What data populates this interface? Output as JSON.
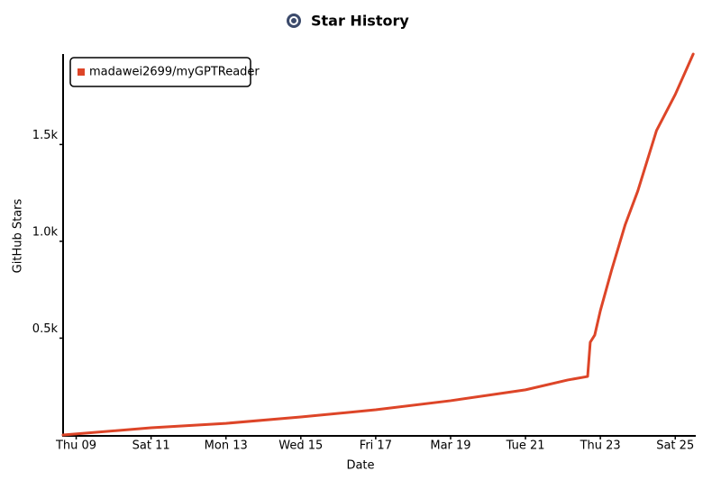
{
  "chart_data": {
    "type": "line",
    "title": "Star History",
    "xlabel": "Date",
    "ylabel": "GitHub Stars",
    "x": [
      8.65,
      11,
      13,
      15,
      17,
      19,
      21,
      22.13,
      22.66,
      22.73,
      22.85,
      23.0,
      23.3,
      23.66,
      24.0,
      24.5,
      25.0,
      25.48
    ],
    "series": [
      {
        "name": "madawei2699/myGPTReader",
        "color": "#dd4528",
        "values": [
          0,
          37,
          60,
          93,
          130,
          177,
          233,
          284,
          302,
          479,
          516,
          642,
          851,
          1084,
          1260,
          1572,
          1758,
          1967
        ]
      }
    ],
    "xlim": [
      8.65,
      25.5
    ],
    "xticks": [
      {
        "value": 9,
        "label": "Thu 09"
      },
      {
        "value": 11,
        "label": "Sat 11"
      },
      {
        "value": 13,
        "label": "Mon 13"
      },
      {
        "value": 15,
        "label": "Wed 15"
      },
      {
        "value": 17,
        "label": "Fri 17"
      },
      {
        "value": 19,
        "label": "Mar 19"
      },
      {
        "value": 21,
        "label": "Tue 21"
      },
      {
        "value": 23,
        "label": "Thu 23"
      },
      {
        "value": 25,
        "label": "Sat 25"
      }
    ],
    "ylim": [
      0,
      1967
    ],
    "yticks": [
      {
        "value": 500,
        "label": "0.5k"
      },
      {
        "value": 1000,
        "label": "1.0k"
      },
      {
        "value": 1500,
        "label": "1.5k"
      }
    ],
    "legend": "top-left"
  }
}
